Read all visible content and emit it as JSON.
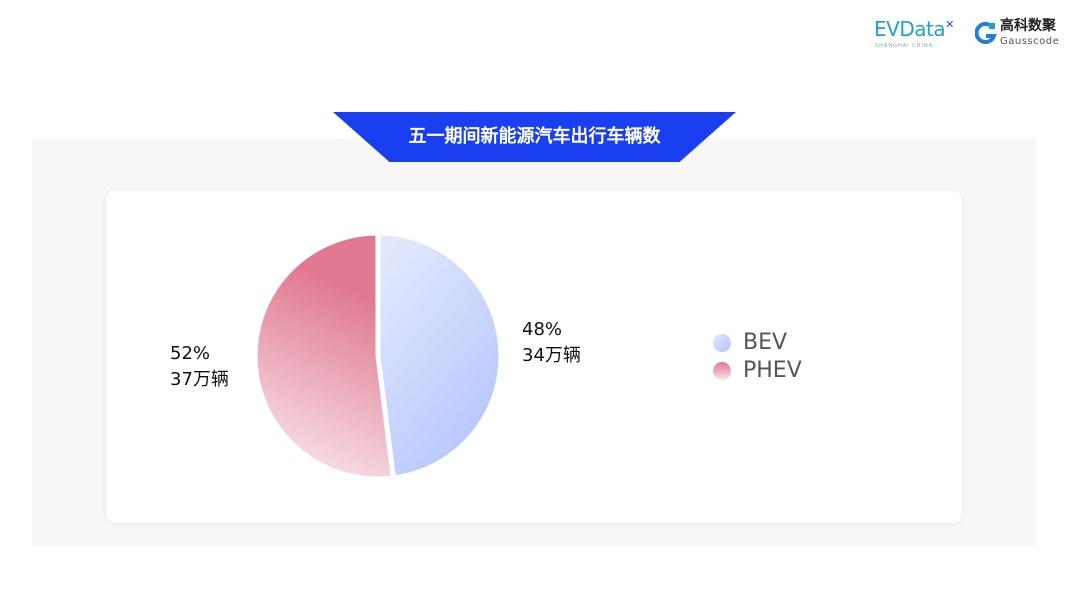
{
  "logos": {
    "evdata": "EVData",
    "evdata_sub": "SHANGHAI CHINA",
    "gausscode_cn": "高科数聚",
    "gausscode_en": "Gausscode"
  },
  "chart_data": {
    "type": "pie",
    "title": "五一期间新能源汽车出行车辆数",
    "slices": [
      {
        "name": "BEV",
        "percent": 48,
        "value_label": "34万辆",
        "percent_label": "48%",
        "color_start": "#e2e8fd",
        "color_end": "#b3c4fb"
      },
      {
        "name": "PHEV",
        "percent": 52,
        "value_label": "37万辆",
        "percent_label": "52%",
        "color_start": "#df7890",
        "color_end": "#f9e4e8"
      }
    ],
    "legend_placement": "right"
  }
}
